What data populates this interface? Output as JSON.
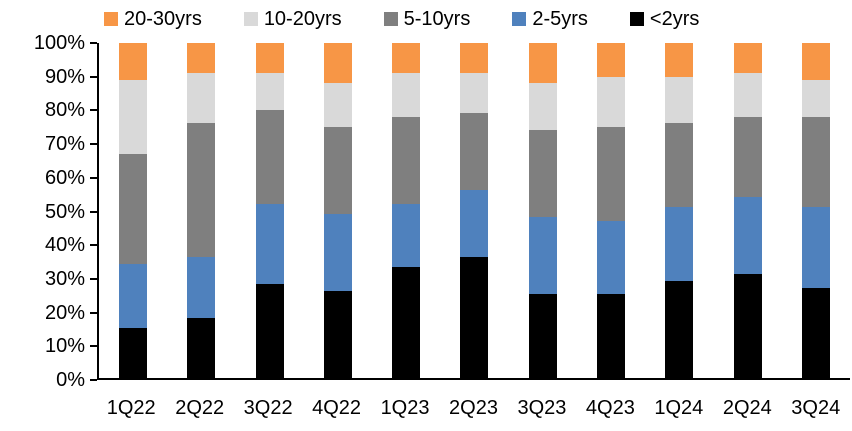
{
  "chart_data": {
    "type": "bar",
    "stacked": true,
    "percent_stacked": true,
    "title": "",
    "xlabel": "",
    "ylabel": "",
    "ylim": [
      0,
      100
    ],
    "grid": false,
    "legend_position": "top",
    "categories": [
      "1Q22",
      "2Q22",
      "3Q22",
      "4Q22",
      "1Q23",
      "2Q23",
      "3Q23",
      "4Q23",
      "1Q24",
      "2Q24",
      "3Q24"
    ],
    "series": [
      {
        "name": "<2yrs",
        "color": "#000000",
        "values": [
          15,
          18,
          28,
          26,
          33,
          36,
          25,
          25,
          29,
          31,
          27
        ]
      },
      {
        "name": "2-5yrs",
        "color": "#4F81BD",
        "values": [
          19,
          18,
          24,
          23,
          19,
          20,
          23,
          22,
          22,
          23,
          24
        ]
      },
      {
        "name": "5-10yrs",
        "color": "#7F7F7F",
        "values": [
          33,
          40,
          28,
          26,
          26,
          23,
          26,
          28,
          25,
          24,
          27
        ]
      },
      {
        "name": "10-20yrs",
        "color": "#D9D9D9",
        "values": [
          22,
          15,
          11,
          13,
          13,
          12,
          14,
          15,
          14,
          13,
          11
        ]
      },
      {
        "name": "20-30yrs",
        "color": "#F79646",
        "values": [
          11,
          9,
          9,
          12,
          9,
          9,
          12,
          10,
          10,
          9,
          11
        ]
      }
    ],
    "legend_display_order": [
      "20-30yrs",
      "10-20yrs",
      "5-10yrs",
      "2-5yrs",
      "<2yrs"
    ],
    "y_tick_labels": [
      "100%",
      "90%",
      "80%",
      "70%",
      "60%",
      "50%",
      "40%",
      "30%",
      "20%",
      "10%",
      "0%"
    ]
  },
  "layout_colors": {
    "axis": "#000000",
    "background": "#FFFFFF"
  }
}
